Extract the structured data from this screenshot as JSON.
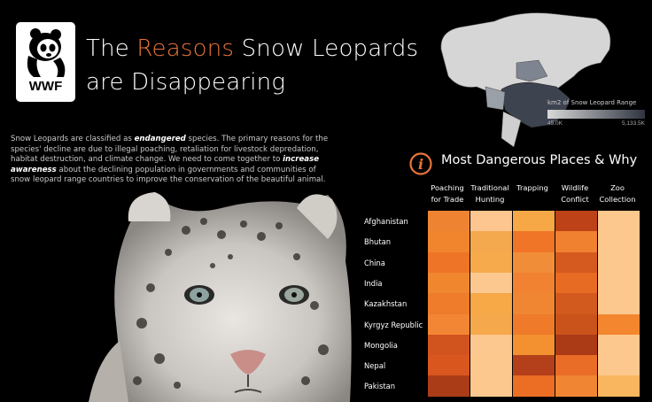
{
  "header": {
    "title_prefix": "The ",
    "title_accent": "Reasons",
    "title_suffix": " Snow Leopards",
    "title_line2": "are Disappearing",
    "logo_text": "WWF"
  },
  "intro": {
    "p1": "Snow Leopards are classified as ",
    "p1_em": "endangered",
    "p2": " species.  The primary reasons for the species' decline are due to illegal poaching, retaliation for livestock depredation, habitat destruction, and climate change.  We need to come together to ",
    "p2_em": "increase awareness",
    "p3": " about the declining population in governments and communities of snow leopard range countries to improve the conservation of the beautiful animal."
  },
  "map_legend": {
    "title": "km2 of Snow Leopard Range",
    "min": "45.0K",
    "max": "5,133.5K"
  },
  "section": {
    "title": "Most Dangerous Places & Why",
    "icon": "info-icon"
  },
  "heatmap": {
    "columns": [
      {
        "line1": "Poaching",
        "line2": "for Trade"
      },
      {
        "line1": "Traditional",
        "line2": "Hunting"
      },
      {
        "line1": "Trapping",
        "line2": ""
      },
      {
        "line1": "Wildlife",
        "line2": "Conflict"
      },
      {
        "line1": "Zoo",
        "line2": "Collection"
      }
    ],
    "rows": [
      "Afghanistan",
      "Bhutan",
      "China",
      "India",
      "Kazakhstan",
      "Kyrgyz Republic",
      "Mongolia",
      "Nepal",
      "Pakistan"
    ],
    "colors": [
      [
        "#ee8432",
        "#fdc590",
        "#f6a746",
        "#bd4218",
        "#fdc88e"
      ],
      [
        "#f0852e",
        "#f5a94e",
        "#f07526",
        "#f08131",
        "#fdc88e"
      ],
      [
        "#ee7427",
        "#f7aa4c",
        "#f08d38",
        "#d55a1f",
        "#fdc88e"
      ],
      [
        "#f0862e",
        "#fdc890",
        "#f08232",
        "#e86b24",
        "#fdc88e"
      ],
      [
        "#ee7c2a",
        "#f7a847",
        "#f08631",
        "#d25a1f",
        "#fdc88e"
      ],
      [
        "#f38634",
        "#f5a94c",
        "#ee7a2a",
        "#ca531c",
        "#f3862e"
      ],
      [
        "#d1531e",
        "#fdc890",
        "#f3902f",
        "#ab3a16",
        "#fdc88e"
      ],
      [
        "#d9561f",
        "#fdc88e",
        "#b3401a",
        "#ea6d27",
        "#fdc88e"
      ],
      [
        "#aa3d18",
        "#fdc88e",
        "#ec6d24",
        "#f08633",
        "#f9b65e"
      ]
    ]
  }
}
